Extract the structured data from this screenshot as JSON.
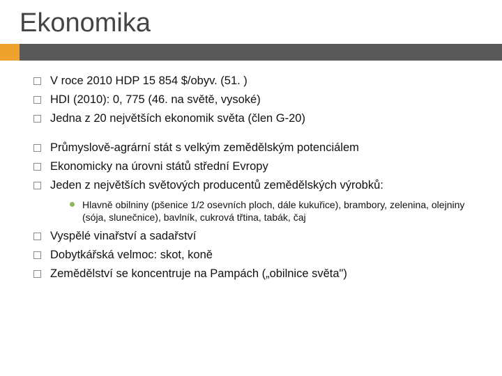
{
  "colors": {
    "title_color": "#444444",
    "accent_bar": "#595959",
    "accent_block": "#f0a22e",
    "bullet_border": "#8a8a8a",
    "sub_bullet": "#8fb760",
    "text": "#111111",
    "background": "#ffffff"
  },
  "typography": {
    "title_fontsize": 38,
    "body_fontsize": 16.5,
    "sub_fontsize": 14,
    "font_family": "Arial"
  },
  "title": "Ekonomika",
  "groups": [
    {
      "items": [
        {
          "text": "V roce 2010 HDP 15 854 $/obyv. (51. )"
        },
        {
          "text": "HDI (2010): 0, 775 (46. na světě, vysoké)"
        },
        {
          "text": "Jedna z 20 největších ekonomik světa (člen G-20)"
        }
      ]
    },
    {
      "items": [
        {
          "text": "Průmyslově-agrární stát s velkým zemědělským potenciálem"
        },
        {
          "text": "Ekonomicky na úrovni států střední Evropy"
        },
        {
          "text": "Jeden z největších světových producentů zemědělských výrobků:",
          "sub": [
            {
              "text": "Hlavně obilniny (pšenice 1/2 osevních ploch, dále kukuřice), brambory, zelenina, olejniny (sója, slunečnice), bavlník, cukrová třtina, tabák, čaj"
            }
          ]
        },
        {
          "text": "Vyspělé vinařství a sadařství"
        },
        {
          "text": "Dobytkářská velmoc: skot, koně"
        },
        {
          "text": "Zemědělství se koncentruje na Pampách („obilnice světa\")"
        }
      ]
    }
  ]
}
